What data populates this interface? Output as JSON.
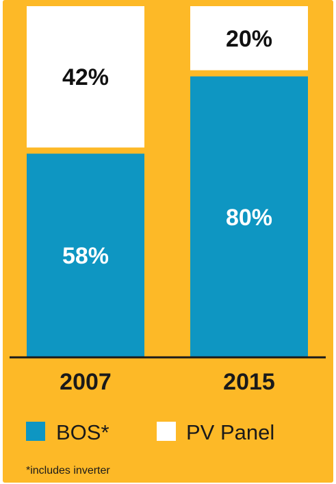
{
  "chart_data": {
    "type": "bar",
    "stacked": true,
    "stack_mode": "percent",
    "categories": [
      "2007",
      "2015"
    ],
    "series": [
      {
        "name": "BOS*",
        "values": [
          58,
          80
        ],
        "color": "#0E96C2",
        "label_color": "#ffffff"
      },
      {
        "name": "PV Panel",
        "values": [
          42,
          20
        ],
        "color": "#ffffff",
        "label_color": "#111111"
      }
    ],
    "value_labels": {
      "BOS*": [
        "58%",
        "80%"
      ],
      "PV Panel": [
        "42%",
        "20%"
      ]
    },
    "ylim": [
      0,
      100
    ],
    "grid": false,
    "legend": "bottom",
    "title": "",
    "xlabel": "",
    "ylabel": ""
  },
  "background_color": "#FDB927",
  "footnote": "*includes inverter"
}
